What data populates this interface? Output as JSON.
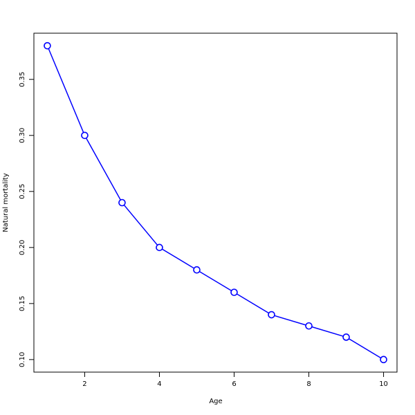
{
  "chart_data": {
    "type": "line",
    "x_label": "Age",
    "y_label": "Natural mortality",
    "x": [
      1,
      2,
      3,
      4,
      5,
      6,
      7,
      8,
      9,
      10
    ],
    "series": [
      {
        "color": "#0000ff",
        "values": [
          0.38,
          0.3,
          0.24,
          0.2,
          0.18,
          0.16,
          0.14,
          0.13,
          0.12,
          0.1
        ]
      }
    ],
    "xlim": [
      0.64,
      10.36
    ],
    "ylim": [
      0.0888,
      0.3912
    ],
    "xticks": [
      2,
      4,
      6,
      8,
      10
    ],
    "yticks": [
      {
        "value": 0.1,
        "label": "0.10"
      },
      0.15,
      {
        "value": 0.2,
        "label": "0.20"
      },
      0.25,
      {
        "value": 0.3,
        "label": "0.30"
      },
      0.35
    ],
    "grid": false
  }
}
